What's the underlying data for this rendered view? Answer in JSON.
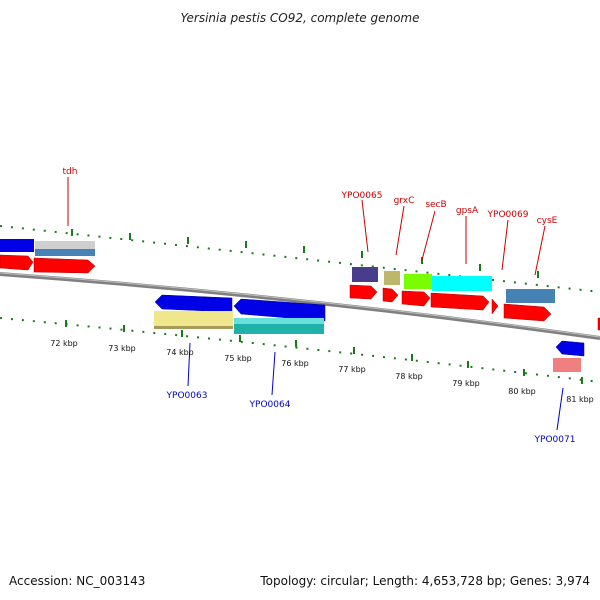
{
  "title": "Yersinia pestis CO92, complete genome",
  "footer": {
    "accession": "Accession: NC_003143",
    "summary": "Topology: circular; Length: 4,653,728 bp; Genes: 3,974"
  },
  "colors": {
    "forward_label": "#cc0000",
    "reverse_label": "#0000cc",
    "backbone": "#808080",
    "tick": "#1a7a1a"
  },
  "scale_labels": [
    "72 kbp",
    "73 kbp",
    "74 kbp",
    "75 kbp",
    "76 kbp",
    "77 kbp",
    "78 kbp",
    "79 kbp",
    "80 kbp",
    "81 kbp"
  ],
  "forward_labels": [
    "tdh",
    "YPO0065",
    "grxC",
    "secB",
    "gpsA",
    "YPO0069",
    "cysE"
  ],
  "reverse_labels": [
    "YPO0063",
    "YPO0064",
    "YPO0071"
  ],
  "features": [
    {
      "strand": "forward",
      "lane": "cds",
      "color": "#e8e8e8"
    },
    {
      "strand": "forward",
      "lane": "cds",
      "color": "#ff0000"
    }
  ]
}
